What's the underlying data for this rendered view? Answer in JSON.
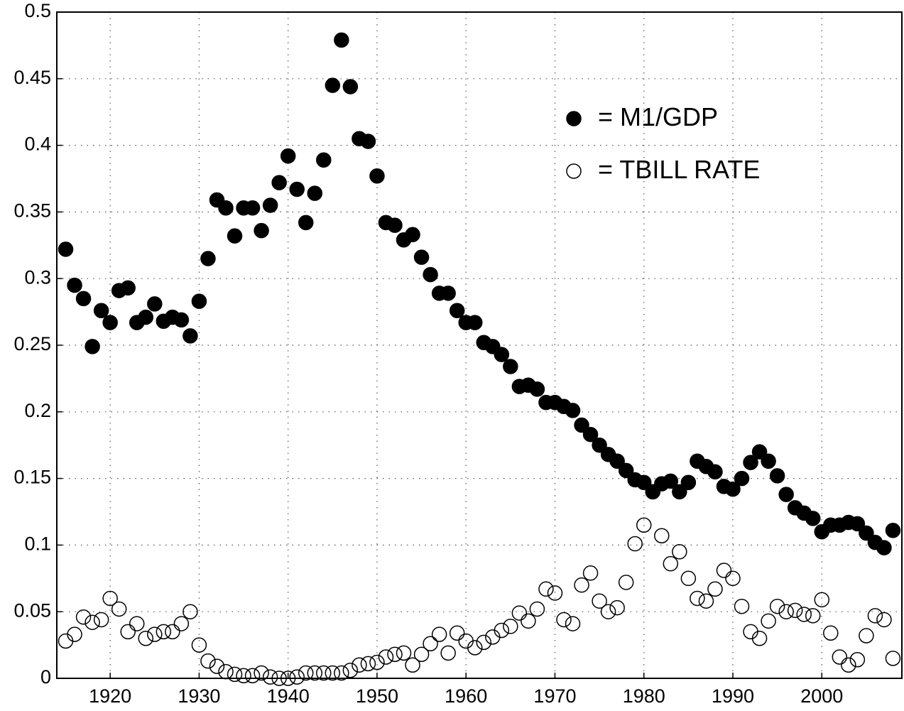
{
  "chart_data": {
    "type": "scatter",
    "x": [
      1915,
      1916,
      1917,
      1918,
      1919,
      1920,
      1921,
      1922,
      1923,
      1924,
      1925,
      1926,
      1927,
      1928,
      1929,
      1930,
      1931,
      1932,
      1933,
      1934,
      1935,
      1936,
      1937,
      1938,
      1939,
      1940,
      1941,
      1942,
      1943,
      1944,
      1945,
      1946,
      1947,
      1948,
      1949,
      1950,
      1951,
      1952,
      1953,
      1954,
      1955,
      1956,
      1957,
      1958,
      1959,
      1960,
      1961,
      1962,
      1963,
      1964,
      1965,
      1966,
      1967,
      1968,
      1969,
      1970,
      1971,
      1972,
      1973,
      1974,
      1975,
      1976,
      1977,
      1978,
      1979,
      1980,
      1981,
      1982,
      1983,
      1984,
      1985,
      1986,
      1987,
      1988,
      1989,
      1990,
      1991,
      1992,
      1993,
      1994,
      1995,
      1996,
      1997,
      1998,
      1999,
      2000,
      2001,
      2002,
      2003,
      2004,
      2005,
      2006,
      2007,
      2008
    ],
    "series": [
      {
        "name": "M1/GDP",
        "color": "#000000",
        "filled": true,
        "values": [
          0.322,
          0.295,
          0.285,
          0.249,
          0.276,
          0.267,
          0.291,
          0.293,
          0.267,
          0.271,
          0.281,
          0.268,
          0.271,
          0.269,
          0.257,
          0.283,
          0.315,
          0.359,
          0.353,
          0.332,
          0.353,
          0.353,
          0.336,
          0.355,
          0.372,
          0.392,
          0.367,
          0.342,
          0.364,
          0.389,
          0.445,
          0.479,
          0.444,
          0.405,
          0.403,
          0.377,
          0.342,
          0.34,
          0.329,
          0.333,
          0.316,
          0.303,
          0.289,
          0.289,
          0.276,
          0.267,
          0.267,
          0.252,
          0.249,
          0.243,
          0.234,
          0.219,
          0.22,
          0.217,
          0.207,
          0.207,
          0.204,
          0.201,
          0.19,
          0.183,
          0.175,
          0.168,
          0.163,
          0.156,
          0.149,
          0.147,
          0.14,
          0.146,
          0.148,
          0.14,
          0.147,
          0.163,
          0.159,
          0.155,
          0.144,
          0.142,
          0.15,
          0.162,
          0.17,
          0.163,
          0.152,
          0.138,
          0.128,
          0.124,
          0.12,
          0.11,
          0.115,
          0.115,
          0.117,
          0.116,
          0.109,
          0.102,
          0.098,
          0.111
        ]
      },
      {
        "name": "TBILL RATE",
        "color": "#000000",
        "filled": false,
        "values": [
          0.028,
          0.033,
          0.046,
          0.042,
          0.044,
          0.06,
          0.052,
          0.035,
          0.041,
          0.03,
          0.033,
          0.035,
          0.035,
          0.041,
          0.05,
          0.025,
          0.013,
          0.009,
          0.005,
          0.003,
          0.002,
          0.002,
          0.004,
          0.001,
          0.0,
          0.0,
          0.001,
          0.004,
          0.004,
          0.004,
          0.004,
          0.004,
          0.006,
          0.01,
          0.011,
          0.012,
          0.016,
          0.018,
          0.019,
          0.01,
          0.018,
          0.026,
          0.033,
          0.019,
          0.034,
          0.028,
          0.023,
          0.027,
          0.031,
          0.036,
          0.039,
          0.049,
          0.043,
          0.052,
          0.067,
          0.064,
          0.044,
          0.041,
          0.07,
          0.079,
          0.058,
          0.05,
          0.053,
          0.072,
          0.101,
          0.115,
          0.14,
          0.107,
          0.086,
          0.095,
          0.075,
          0.06,
          0.058,
          0.067,
          0.081,
          0.075,
          0.054,
          0.035,
          0.03,
          0.043,
          0.054,
          0.05,
          0.051,
          0.048,
          0.047,
          0.059,
          0.034,
          0.016,
          0.01,
          0.014,
          0.032,
          0.047,
          0.044,
          0.015
        ]
      }
    ],
    "xlim": [
      1914,
      2009
    ],
    "xticks": [
      1920,
      1930,
      1940,
      1950,
      1960,
      1970,
      1980,
      1990,
      2000
    ],
    "ylim": [
      0,
      0.5
    ],
    "yticks": [
      0,
      0.05,
      0.1,
      0.15,
      0.2,
      0.25,
      0.3,
      0.35,
      0.4,
      0.45,
      0.5
    ],
    "grid": true
  }
}
